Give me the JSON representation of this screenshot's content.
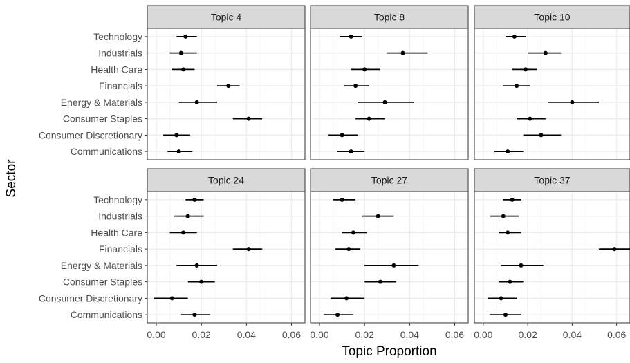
{
  "chart_data": {
    "type": "scatter",
    "subtype": "pointrange-facets",
    "xlabel": "Topic Proportion",
    "ylabel": "Sector",
    "xlim": [
      -0.004,
      0.066
    ],
    "xticks": [
      0.0,
      0.02,
      0.04,
      0.06
    ],
    "xtick_labels": [
      "0.00",
      "0.02",
      "0.04",
      "0.06"
    ],
    "grid": true,
    "categories": [
      "Technology",
      "Industrials",
      "Health Care",
      "Financials",
      "Energy & Materials",
      "Consumer Staples",
      "Consumer Discretionary",
      "Communications"
    ],
    "facets": [
      {
        "title": "Topic 4",
        "points": [
          {
            "y": "Technology",
            "x": 0.013,
            "low": 0.009,
            "high": 0.018
          },
          {
            "y": "Industrials",
            "x": 0.011,
            "low": 0.006,
            "high": 0.018
          },
          {
            "y": "Health Care",
            "x": 0.012,
            "low": 0.007,
            "high": 0.017
          },
          {
            "y": "Financials",
            "x": 0.032,
            "low": 0.027,
            "high": 0.037
          },
          {
            "y": "Energy & Materials",
            "x": 0.018,
            "low": 0.01,
            "high": 0.027
          },
          {
            "y": "Consumer Staples",
            "x": 0.041,
            "low": 0.034,
            "high": 0.047
          },
          {
            "y": "Consumer Discretionary",
            "x": 0.009,
            "low": 0.003,
            "high": 0.015
          },
          {
            "y": "Communications",
            "x": 0.01,
            "low": 0.005,
            "high": 0.016
          }
        ]
      },
      {
        "title": "Topic 8",
        "points": [
          {
            "y": "Technology",
            "x": 0.014,
            "low": 0.009,
            "high": 0.019
          },
          {
            "y": "Industrials",
            "x": 0.037,
            "low": 0.03,
            "high": 0.048
          },
          {
            "y": "Health Care",
            "x": 0.02,
            "low": 0.014,
            "high": 0.027
          },
          {
            "y": "Financials",
            "x": 0.016,
            "low": 0.011,
            "high": 0.022
          },
          {
            "y": "Energy & Materials",
            "x": 0.029,
            "low": 0.017,
            "high": 0.042
          },
          {
            "y": "Consumer Staples",
            "x": 0.022,
            "low": 0.016,
            "high": 0.029
          },
          {
            "y": "Consumer Discretionary",
            "x": 0.01,
            "low": 0.004,
            "high": 0.017
          },
          {
            "y": "Communications",
            "x": 0.014,
            "low": 0.008,
            "high": 0.02
          }
        ]
      },
      {
        "title": "Topic 10",
        "points": [
          {
            "y": "Technology",
            "x": 0.014,
            "low": 0.01,
            "high": 0.019
          },
          {
            "y": "Industrials",
            "x": 0.028,
            "low": 0.02,
            "high": 0.035
          },
          {
            "y": "Health Care",
            "x": 0.019,
            "low": 0.013,
            "high": 0.024
          },
          {
            "y": "Financials",
            "x": 0.015,
            "low": 0.009,
            "high": 0.021
          },
          {
            "y": "Energy & Materials",
            "x": 0.04,
            "low": 0.029,
            "high": 0.052
          },
          {
            "y": "Consumer Staples",
            "x": 0.021,
            "low": 0.015,
            "high": 0.028
          },
          {
            "y": "Consumer Discretionary",
            "x": 0.026,
            "low": 0.018,
            "high": 0.035
          },
          {
            "y": "Communications",
            "x": 0.011,
            "low": 0.005,
            "high": 0.018
          }
        ]
      },
      {
        "title": "Topic 24",
        "points": [
          {
            "y": "Technology",
            "x": 0.017,
            "low": 0.013,
            "high": 0.021
          },
          {
            "y": "Industrials",
            "x": 0.014,
            "low": 0.008,
            "high": 0.021
          },
          {
            "y": "Health Care",
            "x": 0.012,
            "low": 0.006,
            "high": 0.018
          },
          {
            "y": "Financials",
            "x": 0.041,
            "low": 0.034,
            "high": 0.047
          },
          {
            "y": "Energy & Materials",
            "x": 0.018,
            "low": 0.009,
            "high": 0.027
          },
          {
            "y": "Consumer Staples",
            "x": 0.02,
            "low": 0.014,
            "high": 0.026
          },
          {
            "y": "Consumer Discretionary",
            "x": 0.007,
            "low": -0.001,
            "high": 0.014
          },
          {
            "y": "Communications",
            "x": 0.017,
            "low": 0.011,
            "high": 0.024
          }
        ]
      },
      {
        "title": "Topic 27",
        "points": [
          {
            "y": "Technology",
            "x": 0.01,
            "low": 0.006,
            "high": 0.016
          },
          {
            "y": "Industrials",
            "x": 0.026,
            "low": 0.019,
            "high": 0.033
          },
          {
            "y": "Health Care",
            "x": 0.015,
            "low": 0.01,
            "high": 0.021
          },
          {
            "y": "Financials",
            "x": 0.013,
            "low": 0.007,
            "high": 0.018
          },
          {
            "y": "Energy & Materials",
            "x": 0.033,
            "low": 0.02,
            "high": 0.044
          },
          {
            "y": "Consumer Staples",
            "x": 0.027,
            "low": 0.02,
            "high": 0.034
          },
          {
            "y": "Consumer Discretionary",
            "x": 0.012,
            "low": 0.005,
            "high": 0.02
          },
          {
            "y": "Communications",
            "x": 0.008,
            "low": 0.002,
            "high": 0.015
          }
        ]
      },
      {
        "title": "Topic 37",
        "points": [
          {
            "y": "Technology",
            "x": 0.013,
            "low": 0.009,
            "high": 0.017
          },
          {
            "y": "Industrials",
            "x": 0.009,
            "low": 0.003,
            "high": 0.016
          },
          {
            "y": "Health Care",
            "x": 0.011,
            "low": 0.007,
            "high": 0.017
          },
          {
            "y": "Financials",
            "x": 0.059,
            "low": 0.052,
            "high": 0.066
          },
          {
            "y": "Energy & Materials",
            "x": 0.017,
            "low": 0.008,
            "high": 0.027
          },
          {
            "y": "Consumer Staples",
            "x": 0.012,
            "low": 0.007,
            "high": 0.018
          },
          {
            "y": "Consumer Discretionary",
            "x": 0.008,
            "low": 0.002,
            "high": 0.015
          },
          {
            "y": "Communications",
            "x": 0.01,
            "low": 0.003,
            "high": 0.017
          }
        ]
      }
    ]
  },
  "colors": {
    "point": "#000000",
    "strip_fill": "#d9d9d9",
    "strip_border": "#333333",
    "panel_border": "#333333",
    "grid_major": "#ebebeb",
    "grid_minor": "#f5f5f5",
    "axis_text": "#4d4d4d",
    "title_text": "#1a1a1a"
  }
}
